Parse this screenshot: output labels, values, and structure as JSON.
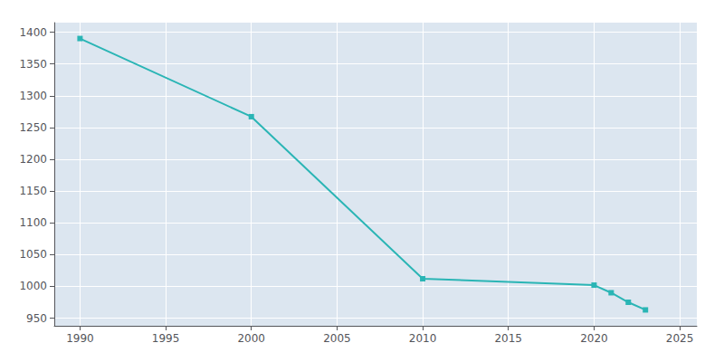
{
  "chart_data": {
    "type": "line",
    "x": [
      1990,
      2000,
      2010,
      2020,
      2021,
      2022,
      2023
    ],
    "values": [
      1390,
      1267,
      1012,
      1002,
      990,
      975,
      963
    ],
    "color": "#2ab5b5",
    "marker": "square",
    "xlim": [
      1988.5,
      2026
    ],
    "ylim": [
      938,
      1415
    ],
    "xticks": [
      1990,
      1995,
      2000,
      2005,
      2010,
      2015,
      2020,
      2025
    ],
    "yticks": [
      950,
      1000,
      1050,
      1100,
      1150,
      1200,
      1250,
      1300,
      1350,
      1400
    ],
    "grid": true
  }
}
